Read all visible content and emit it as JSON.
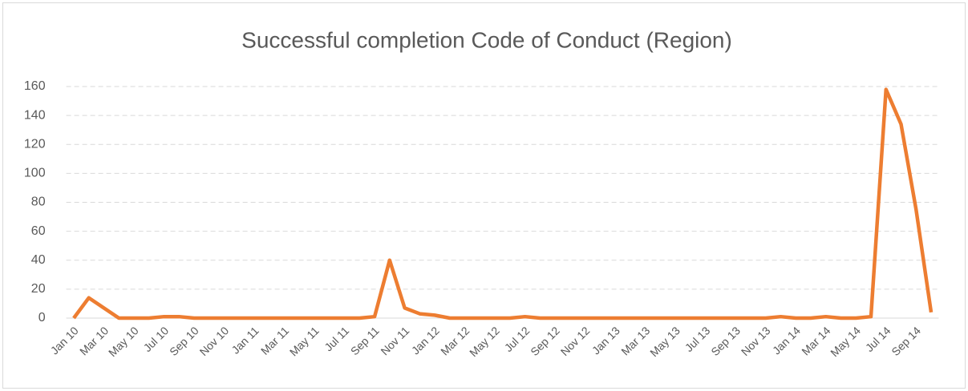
{
  "chart_data": {
    "type": "line",
    "title": "Successful completion Code of Conduct (Region)",
    "categories": [
      "Jan 10",
      null,
      "Mar 10",
      null,
      "May 10",
      null,
      "Jul 10",
      null,
      "Sep 10",
      null,
      "Nov 10",
      null,
      "Jan 11",
      null,
      "Mar 11",
      null,
      "May 11",
      null,
      "Jul 11",
      null,
      "Sep 11",
      null,
      "Nov 11",
      null,
      "Jan 12",
      null,
      "Mar 12",
      null,
      "May 12",
      null,
      "Jul 12",
      null,
      "Sep 12",
      null,
      "Nov 12",
      null,
      "Jan 13",
      null,
      "Mar 13",
      null,
      "May 13",
      null,
      "Jul 13",
      null,
      "Sep 13",
      null,
      "Nov 13",
      null,
      "Jan 14",
      null,
      "Mar 14",
      null,
      "May 14",
      null,
      "Jul 14",
      null,
      "Sep 14",
      null
    ],
    "series": [
      {
        "name": "Region",
        "color": "#ed7d31",
        "values": [
          0,
          14,
          7,
          0,
          0,
          0,
          1,
          1,
          0,
          0,
          0,
          0,
          0,
          0,
          0,
          0,
          0,
          0,
          0,
          0,
          1,
          40,
          7,
          3,
          2,
          0,
          0,
          0,
          0,
          0,
          1,
          0,
          0,
          0,
          0,
          0,
          0,
          0,
          0,
          0,
          0,
          0,
          0,
          0,
          0,
          0,
          0,
          1,
          0,
          0,
          1,
          0,
          0,
          1,
          158,
          134,
          75,
          4
        ]
      }
    ],
    "ylim": [
      0,
      160
    ],
    "yticks": [
      0,
      20,
      40,
      60,
      80,
      100,
      120,
      140,
      160
    ],
    "grid": true
  }
}
